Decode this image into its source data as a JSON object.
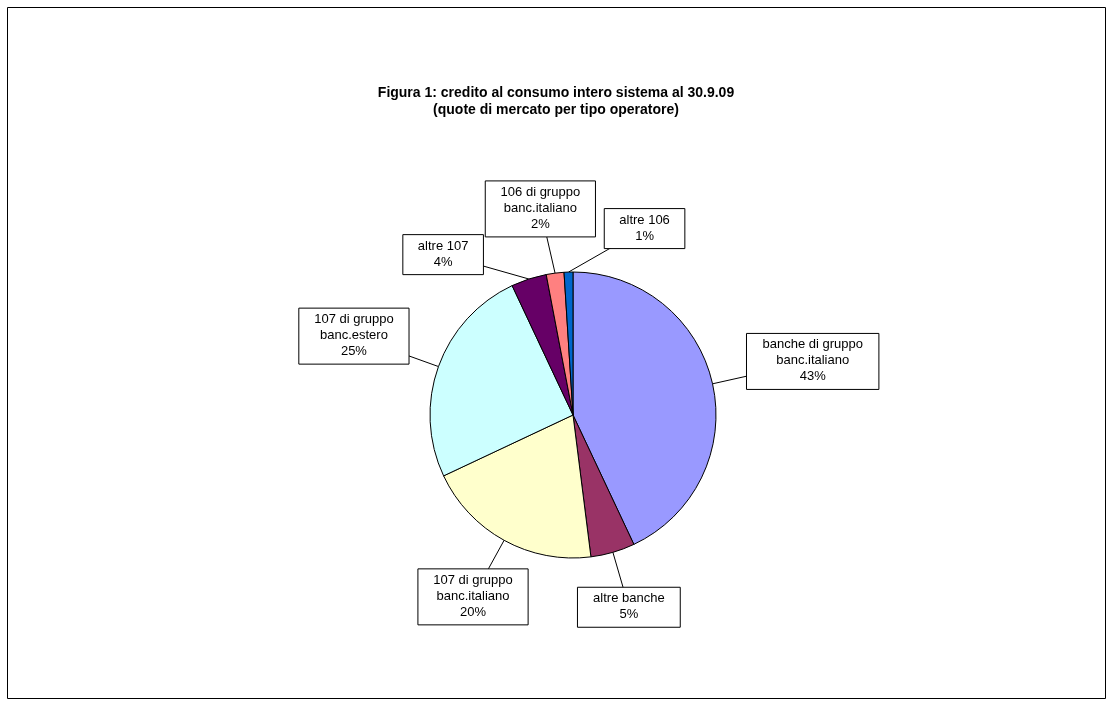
{
  "chart_data": {
    "type": "pie",
    "title": "Figura 1: credito al consumo intero sistema al 30.9.09",
    "subtitle": "(quote di mercato per tipo operatore)",
    "categories": [
      "banche di gruppo banc.italiano",
      "altre banche",
      "107 di gruppo banc.italiano",
      "107 di gruppo banc.estero",
      "altre 107",
      "106 di gruppo banc.italiano",
      "altre 106"
    ],
    "values": [
      43,
      5,
      20,
      25,
      4,
      2,
      1
    ],
    "value_labels": [
      "43%",
      "5%",
      "20%",
      "25%",
      "4%",
      "2%",
      "1%"
    ],
    "colors": [
      "#9999ff",
      "#993366",
      "#ffffcc",
      "#ccffff",
      "#660066",
      "#ff8080",
      "#0066cc"
    ],
    "legend": false
  }
}
